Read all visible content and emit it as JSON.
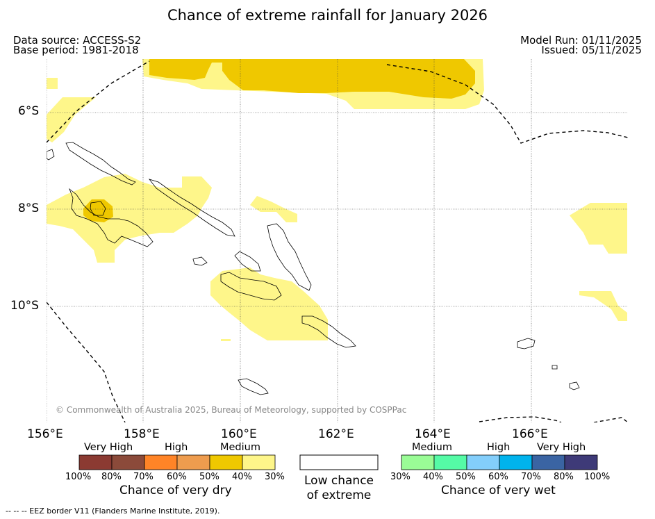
{
  "title": "Chance of extreme rainfall for January 2026",
  "meta": {
    "data_source": "Data source: ACCESS-S2",
    "base_period": "Base period: 1981-2018",
    "model_run": "Model Run: 01/11/2025",
    "issued": "Issued: 05/11/2025"
  },
  "axes": {
    "lat_labels": [
      "6°S",
      "8°S",
      "10°S"
    ],
    "lon_labels": [
      "156°E",
      "158°E",
      "160°E",
      "162°E",
      "164°E",
      "166°E"
    ]
  },
  "copyright": "© Commonwealth of Australia 2025, Bureau of Meteorology, supported by COSPPac",
  "legend_dry": {
    "levels": [
      "Very High",
      "High",
      "Medium"
    ],
    "colors": [
      "#8b3a32",
      "#8b4a3a",
      "#ff8427",
      "#ee9c4e",
      "#efc800",
      "#fef68a"
    ],
    "ticks": [
      "100%",
      "80%",
      "70%",
      "60%",
      "50%",
      "40%",
      "30%"
    ],
    "caption": "Chance of very dry"
  },
  "legend_low": {
    "caption_line1": "Low chance",
    "caption_line2": "of extreme"
  },
  "legend_wet": {
    "levels": [
      "Medium",
      "High",
      "Very High"
    ],
    "colors": [
      "#9afc96",
      "#55fba6",
      "#83cefb",
      "#00b3ed",
      "#3a64a3",
      "#3e3a78"
    ],
    "ticks": [
      "30%",
      "40%",
      "50%",
      "60%",
      "70%",
      "80%",
      "100%"
    ],
    "caption": "Chance of very wet"
  },
  "footnote": "-- -- -- EEZ border V11 (Flanders Marine Institute, 2019)."
}
